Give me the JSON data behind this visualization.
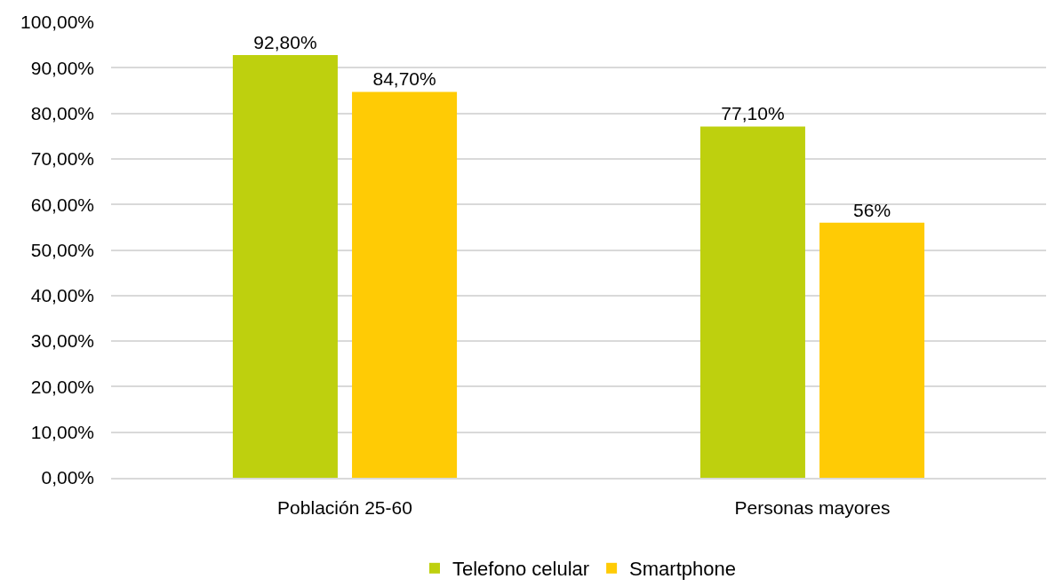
{
  "chart_data": {
    "type": "bar",
    "categories": [
      "Población 25-60",
      "Personas mayores"
    ],
    "series": [
      {
        "name": "Telefono celular",
        "color": "#bed00e",
        "values": [
          92.8,
          77.1
        ],
        "value_labels": [
          "92,80%",
          "77,10%"
        ]
      },
      {
        "name": "Smartphone",
        "color": "#ffcb05",
        "values": [
          84.7,
          56
        ],
        "value_labels": [
          "84,70%",
          "56%"
        ]
      }
    ],
    "ylim": [
      0,
      100
    ],
    "yticks": [
      {
        "value": 0,
        "label": "0,00%"
      },
      {
        "value": 10,
        "label": "10,00%"
      },
      {
        "value": 20,
        "label": "20,00%"
      },
      {
        "value": 30,
        "label": "30,00%"
      },
      {
        "value": 40,
        "label": "40,00%"
      },
      {
        "value": 50,
        "label": "50,00%"
      },
      {
        "value": 60,
        "label": "60,00%"
      },
      {
        "value": 70,
        "label": "70,00%"
      },
      {
        "value": 80,
        "label": "80,00%"
      },
      {
        "value": 90,
        "label": "90,00%"
      },
      {
        "value": 100,
        "label": "100,00%"
      }
    ],
    "grid": "y",
    "legend": "bottom"
  }
}
